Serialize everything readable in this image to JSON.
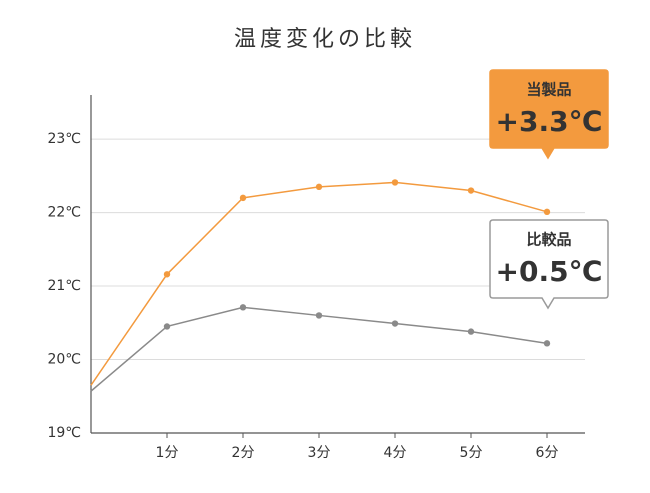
{
  "chart_data": {
    "type": "line",
    "title": "温度変化の比較",
    "x": [
      0,
      1,
      2,
      3,
      4,
      5,
      6
    ],
    "xlim": [
      0,
      6.5
    ],
    "xticks": [
      {
        "value": 1,
        "label": "1分"
      },
      {
        "value": 2,
        "label": "2分"
      },
      {
        "value": 3,
        "label": "3分"
      },
      {
        "value": 4,
        "label": "4分"
      },
      {
        "value": 5,
        "label": "5分"
      },
      {
        "value": 6,
        "label": "6分"
      }
    ],
    "ylim": [
      19,
      23.6
    ],
    "yticks": [
      {
        "value": 19,
        "label": "19℃"
      },
      {
        "value": 20,
        "label": "20℃"
      },
      {
        "value": 21,
        "label": "21℃"
      },
      {
        "value": 22,
        "label": "22℃"
      },
      {
        "value": 23,
        "label": "23℃"
      }
    ],
    "grid": true,
    "series": [
      {
        "name": "当製品",
        "color": "#f39a3e",
        "values": [
          19.65,
          21.16,
          22.2,
          22.35,
          22.41,
          22.3,
          22.01
        ]
      },
      {
        "name": "比較品",
        "color": "#8a8a8a",
        "values": [
          19.57,
          20.45,
          20.71,
          20.6,
          20.49,
          20.38,
          20.22
        ]
      }
    ],
    "annotations": [
      "+3.3℃",
      "+0.5℃"
    ]
  }
}
